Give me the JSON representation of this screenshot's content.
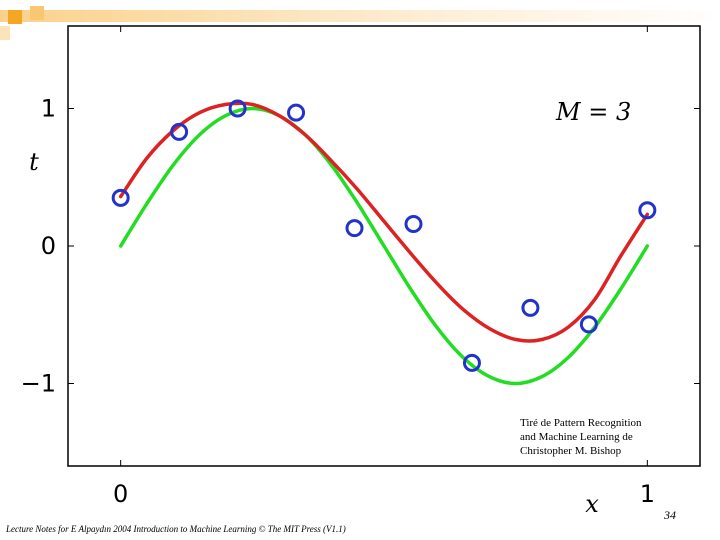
{
  "colors": {
    "fit_curve": "#dd2222",
    "true_curve": "#22dd22",
    "points": "#2233cc",
    "deco_orange": "#f5a623",
    "deco_light": "#fde3b8"
  },
  "chart_data": {
    "type": "line",
    "annotation": "M = 3",
    "xlabel": "x",
    "ylabel": "t",
    "xlim": [
      -0.1,
      1.1
    ],
    "ylim": [
      -1.6,
      1.6
    ],
    "x_ticks": [
      {
        "value": 0,
        "label": "0"
      },
      {
        "value": 1,
        "label": "1"
      }
    ],
    "y_ticks": [
      {
        "value": -1,
        "label": "−1"
      },
      {
        "value": 0,
        "label": "0"
      },
      {
        "value": 1,
        "label": "1"
      }
    ],
    "grid": false,
    "legend": "none",
    "series": [
      {
        "kind": "fit",
        "color": "#dd2222",
        "x": [
          0,
          0.05,
          0.1,
          0.15,
          0.2,
          0.25,
          0.3,
          0.35,
          0.4,
          0.45,
          0.5,
          0.55,
          0.6,
          0.65,
          0.7,
          0.75,
          0.8,
          0.85,
          0.9,
          0.95,
          1
        ],
        "y": [
          0.36,
          0.64,
          0.84,
          0.97,
          1.03,
          1.03,
          0.95,
          0.81,
          0.62,
          0.41,
          0.18,
          -0.05,
          -0.27,
          -0.46,
          -0.6,
          -0.68,
          -0.68,
          -0.59,
          -0.39,
          -0.07,
          0.23
        ]
      },
      {
        "kind": "true",
        "color": "#22dd22",
        "x": [
          0,
          0.05,
          0.1,
          0.15,
          0.2,
          0.25,
          0.3,
          0.35,
          0.4,
          0.45,
          0.5,
          0.55,
          0.6,
          0.65,
          0.7,
          0.75,
          0.8,
          0.85,
          0.9,
          0.95,
          1
        ],
        "y": [
          0,
          0.31,
          0.59,
          0.81,
          0.95,
          1.0,
          0.95,
          0.81,
          0.59,
          0.31,
          0,
          -0.31,
          -0.59,
          -0.81,
          -0.95,
          -1.0,
          -0.95,
          -0.81,
          -0.59,
          -0.31,
          0
        ]
      }
    ],
    "points": {
      "x": [
        0.0,
        0.111,
        0.222,
        0.333,
        0.444,
        0.556,
        0.667,
        0.778,
        0.889,
        1.0
      ],
      "y": [
        0.35,
        0.83,
        1.0,
        0.97,
        0.13,
        0.16,
        -0.85,
        -0.45,
        -0.57,
        0.26
      ]
    }
  },
  "credit": {
    "line1": "Tiré de Pattern Recognition",
    "line2": "and Machine Learning de",
    "line3": "Christopher M. Bishop"
  },
  "page_number": "34",
  "footer": "Lecture Notes for E Alpaydın 2004 Introduction to Machine Learning © The MIT Press (V1.1)"
}
